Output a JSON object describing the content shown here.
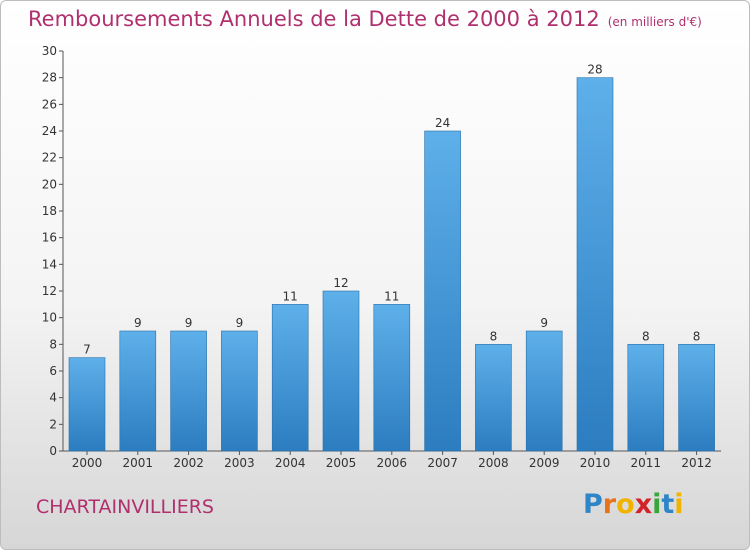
{
  "header": {
    "title": "Remboursements Annuels de la Dette de 2000 à 2012",
    "unit": "(en milliers d'€)"
  },
  "footer": {
    "commune": "CHARTAINVILLIERS",
    "logo_letters": [
      "P",
      "r",
      "o",
      "x",
      "i",
      "t",
      "i"
    ],
    "logo_colors": [
      "#2e86c8",
      "#e8731a",
      "#f0b400",
      "#d2232a",
      "#3aa63a",
      "#2e86c8",
      "#f0b400"
    ]
  },
  "colors": {
    "title": "#b0306e",
    "bar_top": "#5eb0ea",
    "bar_bottom": "#2c7dc0"
  },
  "chart_data": {
    "type": "bar",
    "title": "Remboursements Annuels de la Dette de 2000 à 2012",
    "categories": [
      "2000",
      "2001",
      "2002",
      "2003",
      "2004",
      "2005",
      "2006",
      "2007",
      "2008",
      "2009",
      "2010",
      "2011",
      "2012"
    ],
    "values": [
      7,
      9,
      9,
      9,
      11,
      12,
      11,
      24,
      8,
      9,
      28,
      8,
      8
    ],
    "ylim": [
      0,
      30
    ],
    "yticks": [
      0,
      2,
      4,
      6,
      8,
      10,
      12,
      14,
      16,
      18,
      20,
      22,
      24,
      26,
      28,
      30
    ],
    "grid": false,
    "legend": "none"
  }
}
